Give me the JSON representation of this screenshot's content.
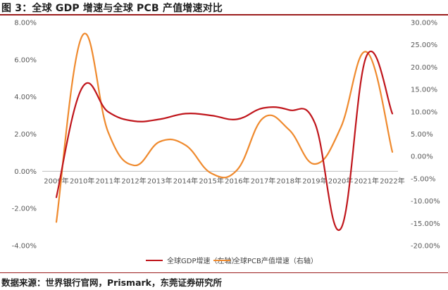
{
  "figure": {
    "title": "图 3：全球 GDP 增速与全球 PCB 产值增速对比",
    "source": "数据来源：世界银行官网，Prismark，东莞证券研究所"
  },
  "chart_data": {
    "type": "line",
    "dual_axis": true,
    "categories": [
      "2009年",
      "2010年",
      "2011年",
      "2012年",
      "2013年",
      "2014年",
      "2015年",
      "2016年",
      "2017年",
      "2018年",
      "2019年",
      "2020年",
      "2021年",
      "2022年"
    ],
    "series": [
      {
        "name": "全球GDP增速（左轴）",
        "axis": "left",
        "color": "#c0161c",
        "values": [
          -1.4,
          4.5,
          3.2,
          2.7,
          2.8,
          3.1,
          3.0,
          2.8,
          3.4,
          3.3,
          2.6,
          -3.1,
          6.2,
          3.1
        ]
      },
      {
        "name": "全球PCB产值增速（右轴）",
        "axis": "right",
        "color": "#ef8a2e",
        "values": [
          -14.7,
          27.0,
          5.5,
          -2.0,
          3.3,
          2.5,
          -3.8,
          -3.0,
          8.6,
          6.0,
          -1.7,
          6.4,
          23.4,
          1.0
        ]
      }
    ],
    "y_left": {
      "min": -4,
      "max": 8,
      "step": 2,
      "ticks": [
        "-4.00%",
        "-2.00%",
        "0.00%",
        "2.00%",
        "4.00%",
        "6.00%",
        "8.00%"
      ]
    },
    "y_right": {
      "min": -20,
      "max": 30,
      "step": 5,
      "ticks": [
        "-20.00%",
        "-15.00%",
        "-10.00%",
        "-5.00%",
        "0.00%",
        "5.00%",
        "10.00%",
        "15.00%",
        "20.00%",
        "25.00%",
        "30.00%"
      ]
    },
    "category_axis_at": 0,
    "grid": false,
    "legend_position": "bottom"
  }
}
